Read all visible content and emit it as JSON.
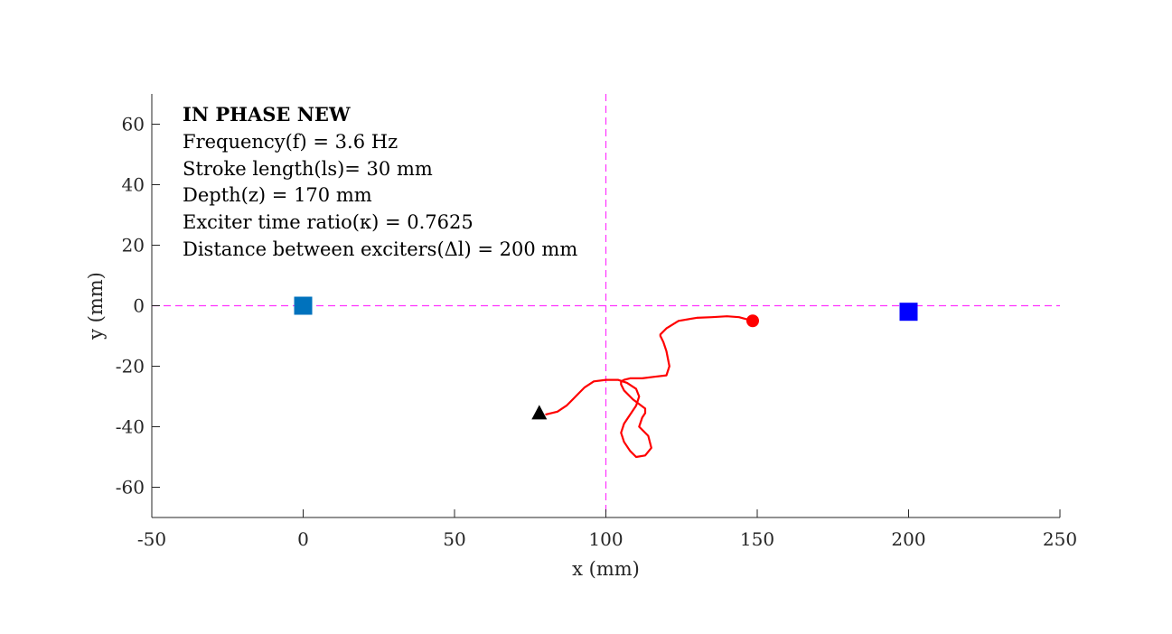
{
  "chart_data": {
    "type": "scatter",
    "xlabel": "x (mm)",
    "ylabel": "y (mm)",
    "xlim": [
      -50,
      250
    ],
    "ylim": [
      -70,
      70
    ],
    "xticks": [
      -50,
      0,
      50,
      100,
      150,
      200,
      250
    ],
    "yticks": [
      -60,
      -40,
      -20,
      0,
      20,
      40,
      60
    ],
    "xtick_labels": [
      "-50",
      "0",
      "50",
      "100",
      "150",
      "200",
      "250"
    ],
    "ytick_labels": [
      "-60",
      "-40",
      "-20",
      "0",
      "20",
      "40",
      "60"
    ],
    "grid": false,
    "annotations": [
      "IN PHASE NEW",
      "Frequency(f) = 3.6 Hz",
      "Stroke length(ls)= 30 mm",
      "Depth(z) = 170 mm",
      "Exciter time ratio(κ) = 0.7625",
      "Distance between exciters(Δl) = 200 mm"
    ],
    "reference_lines": [
      {
        "orientation": "vertical",
        "value": 100,
        "color": "#ff33ff",
        "style": "dashed"
      },
      {
        "orientation": "horizontal",
        "value": 0,
        "color": "#ff33ff",
        "style": "dashed"
      }
    ],
    "markers": [
      {
        "shape": "square",
        "x": 0,
        "y": 0,
        "color": "#0072bd"
      },
      {
        "shape": "square",
        "x": 200,
        "y": -2,
        "color": "#0000ff"
      },
      {
        "shape": "triangle",
        "x": 78,
        "y": -35.5,
        "color": "#000000"
      },
      {
        "shape": "circle",
        "x": 148.5,
        "y": -5,
        "color": "#ff0000"
      }
    ],
    "series": [
      {
        "color": "#ff0000",
        "x": [
          80,
          84,
          87,
          90,
          93,
          96,
          100,
          104,
          107,
          110,
          111,
          110,
          108,
          106,
          105,
          106,
          108,
          110,
          113,
          115,
          114,
          111,
          112,
          113,
          113,
          109,
          106,
          105,
          105,
          106,
          108,
          112,
          116,
          120,
          121,
          120,
          119,
          118,
          118,
          120,
          124,
          130,
          135,
          140,
          144,
          148.5
        ],
        "y": [
          -36,
          -35,
          -33,
          -30,
          -27,
          -25,
          -24.5,
          -24.5,
          -25.5,
          -27.5,
          -30,
          -33,
          -36,
          -39,
          -42,
          -45,
          -48,
          -50,
          -49.5,
          -47,
          -43,
          -40,
          -37,
          -35.5,
          -34,
          -31,
          -28,
          -26,
          -25,
          -24.5,
          -24,
          -24,
          -23.5,
          -23,
          -20,
          -15,
          -12,
          -10,
          -9.5,
          -7.5,
          -5,
          -4,
          -3.8,
          -3.5,
          -3.8,
          -5
        ]
      }
    ]
  }
}
